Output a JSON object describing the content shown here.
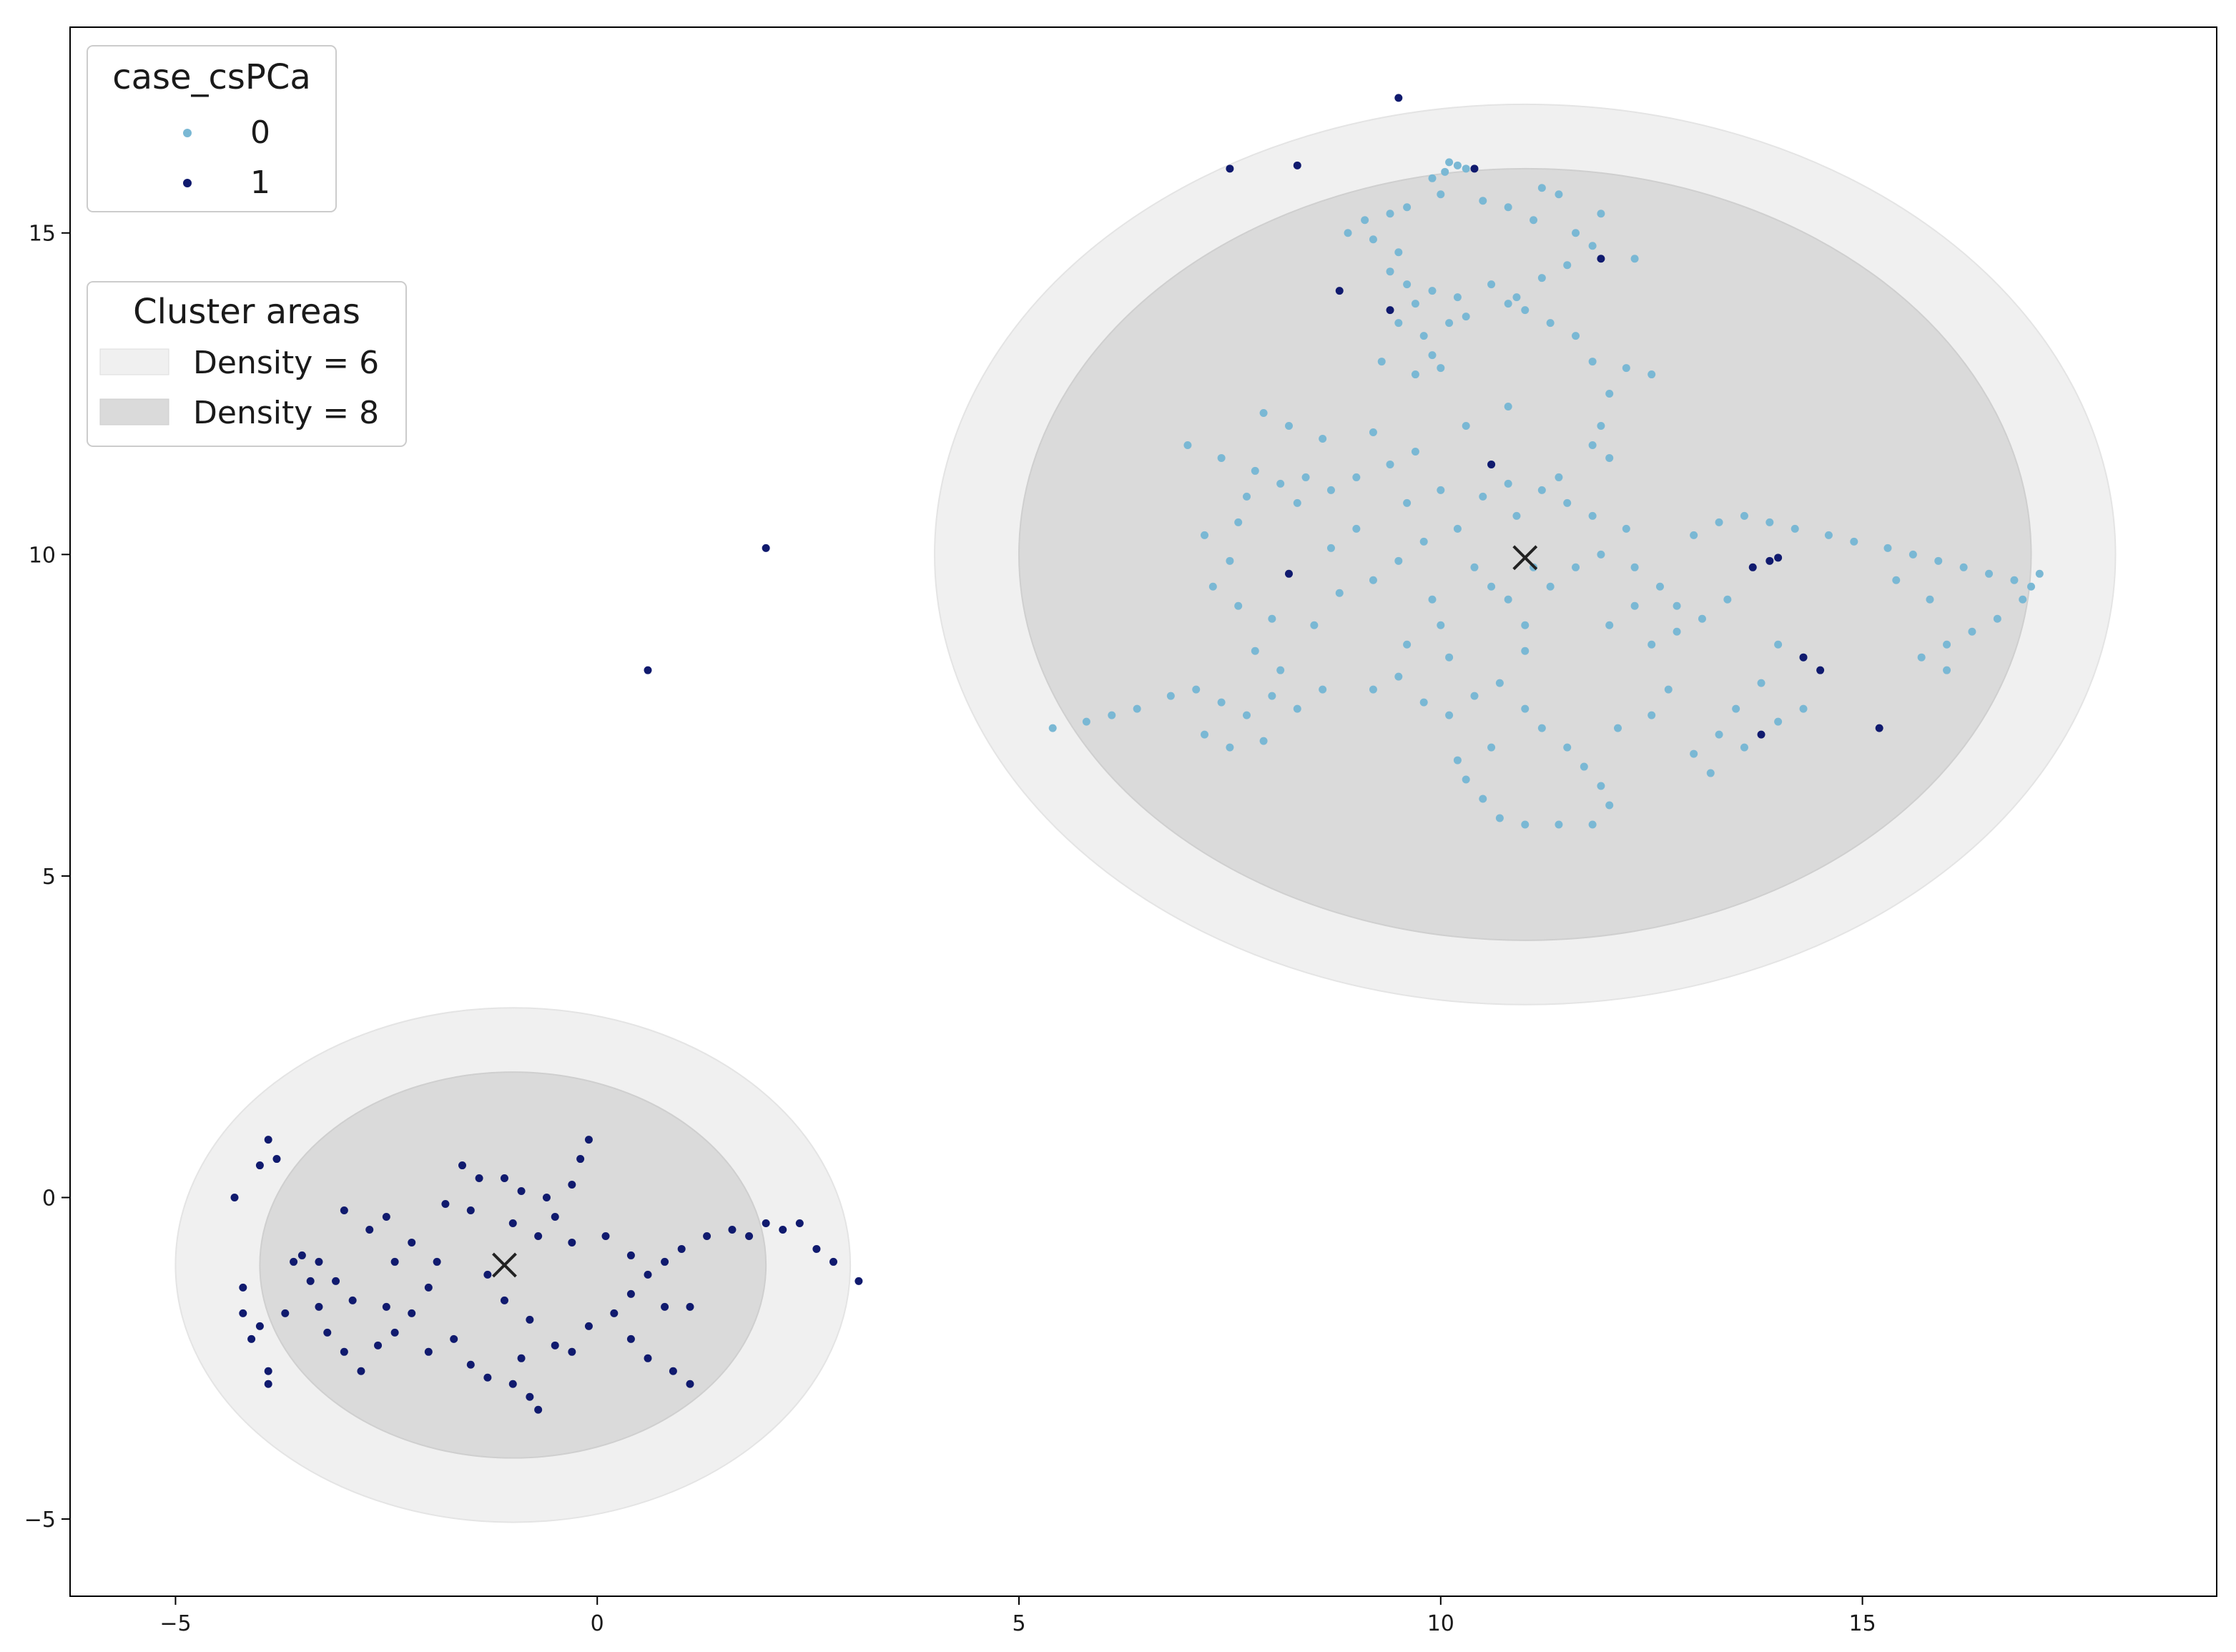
{
  "chart_data": {
    "type": "scatter",
    "title": "",
    "xlabel": "",
    "ylabel": "",
    "xlim": [
      -6.25,
      19.2
    ],
    "ylim": [
      -6.2,
      18.2
    ],
    "x_ticks": [
      -5,
      0,
      5,
      10,
      15
    ],
    "y_ticks": [
      -5,
      0,
      5,
      10,
      15
    ],
    "x_tick_labels": [
      "−5",
      "0",
      "5",
      "10",
      "15"
    ],
    "y_tick_labels": [
      "−5",
      "0",
      "5",
      "10",
      "15"
    ],
    "grid": false,
    "colors": {
      "class_0": "#7ab8d4",
      "class_1": "#101a6e",
      "density_6": "#f0f0f0",
      "density_8": "#dadada",
      "center_marker": "#222222"
    },
    "legend_class": {
      "title": "case_csPCa",
      "placement": "upper-left",
      "entries": [
        {
          "label": "0",
          "color": "#7ab8d4"
        },
        {
          "label": "1",
          "color": "#101a6e"
        }
      ]
    },
    "legend_areas": {
      "title": "Cluster areas",
      "placement": "upper-left (below first legend)",
      "entries": [
        {
          "label": "Density = 6",
          "color": "#f0f0f0"
        },
        {
          "label": "Density = 8",
          "color": "#dadada"
        }
      ]
    },
    "cluster_areas": [
      {
        "name": "cluster-right",
        "center": [
          11.0,
          10.0
        ],
        "density_6": {
          "rx": 7.0,
          "ry": 7.0
        },
        "density_8": {
          "rx": 6.0,
          "ry": 6.0
        }
      },
      {
        "name": "cluster-left",
        "center": [
          -1.0,
          -1.05
        ],
        "density_6": {
          "rx": 4.0,
          "ry": 4.0
        },
        "density_8": {
          "rx": 3.0,
          "ry": 3.0
        }
      }
    ],
    "centers": [
      {
        "x": 11.0,
        "y": 9.95
      },
      {
        "x": -1.1,
        "y": -1.05
      }
    ],
    "series": [
      {
        "name": "0",
        "color": "#7ab8d4",
        "points": [
          [
            10.1,
            16.1
          ],
          [
            10.2,
            16.05
          ],
          [
            10.05,
            15.95
          ],
          [
            10.3,
            16.0
          ],
          [
            9.9,
            15.85
          ],
          [
            10.0,
            15.6
          ],
          [
            9.6,
            15.4
          ],
          [
            9.4,
            15.3
          ],
          [
            9.1,
            15.2
          ],
          [
            8.9,
            15.0
          ],
          [
            9.2,
            14.9
          ],
          [
            9.5,
            14.7
          ],
          [
            9.4,
            14.4
          ],
          [
            9.6,
            14.2
          ],
          [
            9.7,
            13.9
          ],
          [
            9.5,
            13.6
          ],
          [
            9.8,
            13.4
          ],
          [
            9.9,
            13.1
          ],
          [
            10.0,
            12.9
          ],
          [
            9.7,
            12.8
          ],
          [
            9.3,
            13.0
          ],
          [
            10.1,
            13.6
          ],
          [
            9.9,
            14.1
          ],
          [
            10.2,
            14.0
          ],
          [
            10.3,
            13.7
          ],
          [
            10.5,
            15.5
          ],
          [
            10.8,
            15.4
          ],
          [
            11.2,
            15.7
          ],
          [
            11.4,
            15.6
          ],
          [
            11.1,
            15.2
          ],
          [
            11.6,
            15.0
          ],
          [
            11.8,
            14.8
          ],
          [
            11.5,
            14.5
          ],
          [
            11.2,
            14.3
          ],
          [
            10.9,
            14.0
          ],
          [
            11.0,
            13.8
          ],
          [
            11.3,
            13.6
          ],
          [
            11.6,
            13.4
          ],
          [
            11.8,
            13.0
          ],
          [
            12.0,
            12.5
          ],
          [
            11.9,
            12.0
          ],
          [
            11.8,
            11.7
          ],
          [
            12.2,
            12.9
          ],
          [
            12.5,
            12.8
          ],
          [
            10.6,
            14.2
          ],
          [
            10.8,
            13.9
          ],
          [
            11.9,
            15.3
          ],
          [
            12.3,
            14.6
          ],
          [
            7.0,
            11.7
          ],
          [
            7.4,
            11.5
          ],
          [
            7.8,
            11.3
          ],
          [
            8.1,
            11.1
          ],
          [
            8.4,
            11.2
          ],
          [
            8.7,
            11.0
          ],
          [
            9.0,
            11.2
          ],
          [
            9.4,
            11.4
          ],
          [
            9.7,
            11.6
          ],
          [
            8.6,
            11.8
          ],
          [
            8.2,
            12.0
          ],
          [
            7.9,
            12.2
          ],
          [
            9.2,
            11.9
          ],
          [
            10.0,
            11.0
          ],
          [
            10.5,
            10.9
          ],
          [
            10.8,
            11.1
          ],
          [
            11.2,
            11.0
          ],
          [
            11.5,
            10.8
          ],
          [
            11.8,
            10.6
          ],
          [
            12.2,
            10.4
          ],
          [
            7.2,
            10.3
          ],
          [
            7.6,
            10.5
          ],
          [
            7.5,
            9.9
          ],
          [
            7.3,
            9.5
          ],
          [
            7.6,
            9.2
          ],
          [
            8.0,
            9.0
          ],
          [
            8.5,
            8.9
          ],
          [
            8.8,
            9.4
          ],
          [
            9.2,
            9.6
          ],
          [
            9.5,
            9.9
          ],
          [
            9.8,
            10.2
          ],
          [
            10.2,
            10.4
          ],
          [
            10.4,
            9.8
          ],
          [
            10.6,
            9.5
          ],
          [
            10.8,
            9.3
          ],
          [
            11.3,
            9.5
          ],
          [
            11.6,
            9.8
          ],
          [
            11.9,
            10.0
          ],
          [
            12.3,
            9.8
          ],
          [
            12.6,
            9.5
          ],
          [
            12.8,
            9.2
          ],
          [
            13.0,
            10.3
          ],
          [
            13.3,
            10.5
          ],
          [
            13.6,
            10.6
          ],
          [
            13.9,
            10.5
          ],
          [
            14.2,
            10.4
          ],
          [
            14.6,
            10.3
          ],
          [
            14.9,
            10.2
          ],
          [
            15.3,
            10.1
          ],
          [
            15.6,
            10.0
          ],
          [
            15.9,
            9.9
          ],
          [
            16.2,
            9.8
          ],
          [
            16.5,
            9.7
          ],
          [
            16.8,
            9.6
          ],
          [
            17.0,
            9.5
          ],
          [
            17.1,
            9.7
          ],
          [
            16.9,
            9.3
          ],
          [
            16.6,
            9.0
          ],
          [
            16.3,
            8.8
          ],
          [
            16.0,
            8.6
          ],
          [
            15.7,
            8.4
          ],
          [
            16.0,
            8.2
          ],
          [
            15.8,
            9.3
          ],
          [
            15.4,
            9.6
          ],
          [
            13.4,
            9.3
          ],
          [
            13.1,
            9.0
          ],
          [
            12.8,
            8.8
          ],
          [
            12.5,
            8.6
          ],
          [
            14.0,
            8.6
          ],
          [
            14.3,
            8.4
          ],
          [
            13.8,
            8.0
          ],
          [
            13.5,
            7.6
          ],
          [
            13.3,
            7.2
          ],
          [
            13.0,
            6.9
          ],
          [
            13.2,
            6.6
          ],
          [
            14.0,
            7.4
          ],
          [
            14.3,
            7.6
          ],
          [
            13.6,
            7.0
          ],
          [
            5.4,
            7.3
          ],
          [
            5.8,
            7.4
          ],
          [
            6.1,
            7.5
          ],
          [
            6.4,
            7.6
          ],
          [
            6.8,
            7.8
          ],
          [
            7.1,
            7.9
          ],
          [
            7.4,
            7.7
          ],
          [
            7.7,
            7.5
          ],
          [
            8.0,
            7.8
          ],
          [
            8.3,
            7.6
          ],
          [
            8.6,
            7.9
          ],
          [
            7.2,
            7.2
          ],
          [
            7.5,
            7.0
          ],
          [
            7.9,
            7.1
          ],
          [
            8.1,
            8.2
          ],
          [
            7.8,
            8.5
          ],
          [
            9.2,
            7.9
          ],
          [
            9.5,
            8.1
          ],
          [
            9.8,
            7.7
          ],
          [
            10.1,
            7.5
          ],
          [
            10.4,
            7.8
          ],
          [
            10.7,
            8.0
          ],
          [
            11.0,
            7.6
          ],
          [
            11.2,
            7.3
          ],
          [
            11.5,
            7.0
          ],
          [
            11.7,
            6.7
          ],
          [
            11.9,
            6.4
          ],
          [
            12.0,
            6.1
          ],
          [
            11.8,
            5.8
          ],
          [
            11.4,
            5.8
          ],
          [
            11.0,
            5.8
          ],
          [
            10.7,
            5.9
          ],
          [
            10.5,
            6.2
          ],
          [
            10.3,
            6.5
          ],
          [
            10.2,
            6.8
          ],
          [
            10.6,
            7.0
          ],
          [
            11.0,
            8.5
          ],
          [
            11.0,
            8.9
          ],
          [
            10.1,
            8.4
          ],
          [
            9.6,
            8.6
          ],
          [
            12.1,
            7.3
          ],
          [
            12.5,
            7.5
          ],
          [
            12.7,
            7.9
          ],
          [
            12.0,
            8.9
          ],
          [
            12.3,
            9.2
          ],
          [
            9.0,
            10.4
          ],
          [
            8.7,
            10.1
          ],
          [
            9.9,
            9.3
          ],
          [
            10.0,
            8.9
          ],
          [
            11.4,
            11.2
          ],
          [
            10.9,
            10.6
          ],
          [
            11.1,
            9.8
          ],
          [
            12.0,
            11.5
          ],
          [
            10.6,
            11.4
          ],
          [
            9.6,
            10.8
          ],
          [
            10.3,
            12.0
          ],
          [
            10.8,
            12.3
          ],
          [
            8.3,
            10.8
          ],
          [
            7.7,
            10.9
          ]
        ]
      },
      {
        "name": "1",
        "color": "#101a6e",
        "points": [
          [
            9.5,
            17.1
          ],
          [
            7.5,
            16.0
          ],
          [
            8.3,
            16.05
          ],
          [
            10.4,
            16.0
          ],
          [
            8.8,
            14.1
          ],
          [
            9.4,
            13.8
          ],
          [
            11.9,
            14.6
          ],
          [
            10.6,
            11.4
          ],
          [
            8.2,
            9.7
          ],
          [
            13.7,
            9.8
          ],
          [
            13.9,
            9.9
          ],
          [
            14.0,
            9.95
          ],
          [
            14.3,
            8.4
          ],
          [
            14.5,
            8.2
          ],
          [
            15.2,
            7.3
          ],
          [
            13.8,
            7.2
          ],
          [
            2.0,
            10.1
          ],
          [
            0.6,
            8.2
          ],
          [
            -4.3,
            0.0
          ],
          [
            -4.0,
            0.5
          ],
          [
            -3.9,
            0.9
          ],
          [
            -3.8,
            0.6
          ],
          [
            -4.2,
            -1.4
          ],
          [
            -4.2,
            -1.8
          ],
          [
            -4.1,
            -2.2
          ],
          [
            -4.0,
            -2.0
          ],
          [
            -3.9,
            -2.7
          ],
          [
            -3.9,
            -2.9
          ],
          [
            -3.7,
            -1.8
          ],
          [
            -3.6,
            -1.0
          ],
          [
            -3.3,
            -1.0
          ],
          [
            -3.1,
            -1.3
          ],
          [
            -3.3,
            -1.7
          ],
          [
            -3.2,
            -2.1
          ],
          [
            -3.0,
            -2.4
          ],
          [
            -2.8,
            -2.7
          ],
          [
            -2.6,
            -2.3
          ],
          [
            -2.4,
            -2.1
          ],
          [
            -2.2,
            -1.8
          ],
          [
            -2.0,
            -1.4
          ],
          [
            -1.9,
            -1.0
          ],
          [
            -2.2,
            -0.7
          ],
          [
            -2.5,
            -0.3
          ],
          [
            -2.7,
            -0.5
          ],
          [
            -1.8,
            -0.1
          ],
          [
            -1.5,
            -0.2
          ],
          [
            -1.4,
            0.3
          ],
          [
            -1.6,
            0.5
          ],
          [
            -1.5,
            -2.6
          ],
          [
            -1.3,
            -2.8
          ],
          [
            -1.0,
            -2.9
          ],
          [
            -0.8,
            -3.1
          ],
          [
            -0.7,
            -3.3
          ],
          [
            -0.9,
            -2.5
          ],
          [
            -0.5,
            -2.3
          ],
          [
            -0.3,
            -2.4
          ],
          [
            -0.1,
            -2.0
          ],
          [
            0.2,
            -1.8
          ],
          [
            0.4,
            -1.5
          ],
          [
            0.6,
            -1.2
          ],
          [
            0.8,
            -1.0
          ],
          [
            1.0,
            -0.8
          ],
          [
            1.3,
            -0.6
          ],
          [
            1.6,
            -0.5
          ],
          [
            1.8,
            -0.6
          ],
          [
            2.0,
            -0.4
          ],
          [
            2.2,
            -0.5
          ],
          [
            2.4,
            -0.4
          ],
          [
            2.6,
            -0.8
          ],
          [
            2.8,
            -1.0
          ],
          [
            3.1,
            -1.3
          ],
          [
            0.4,
            -2.2
          ],
          [
            0.6,
            -2.5
          ],
          [
            0.9,
            -2.7
          ],
          [
            1.1,
            -2.9
          ],
          [
            0.8,
            -1.7
          ],
          [
            1.1,
            -1.7
          ],
          [
            -0.1,
            0.9
          ],
          [
            -0.2,
            0.6
          ],
          [
            -0.3,
            0.2
          ],
          [
            -0.5,
            -0.3
          ],
          [
            -0.7,
            -0.6
          ],
          [
            -0.9,
            0.1
          ],
          [
            -1.1,
            0.3
          ],
          [
            -1.3,
            -1.2
          ],
          [
            -1.1,
            -1.6
          ],
          [
            -0.8,
            -1.9
          ],
          [
            -3.5,
            -0.9
          ],
          [
            -3.4,
            -1.3
          ],
          [
            -2.9,
            -1.6
          ],
          [
            -2.5,
            -1.7
          ],
          [
            -2.0,
            -2.4
          ],
          [
            -1.7,
            -2.2
          ],
          [
            -0.3,
            -0.7
          ],
          [
            0.1,
            -0.6
          ],
          [
            0.4,
            -0.9
          ],
          [
            -0.6,
            0.0
          ],
          [
            -1.0,
            -0.4
          ],
          [
            -2.4,
            -1.0
          ],
          [
            -3.0,
            -0.2
          ]
        ]
      }
    ]
  }
}
